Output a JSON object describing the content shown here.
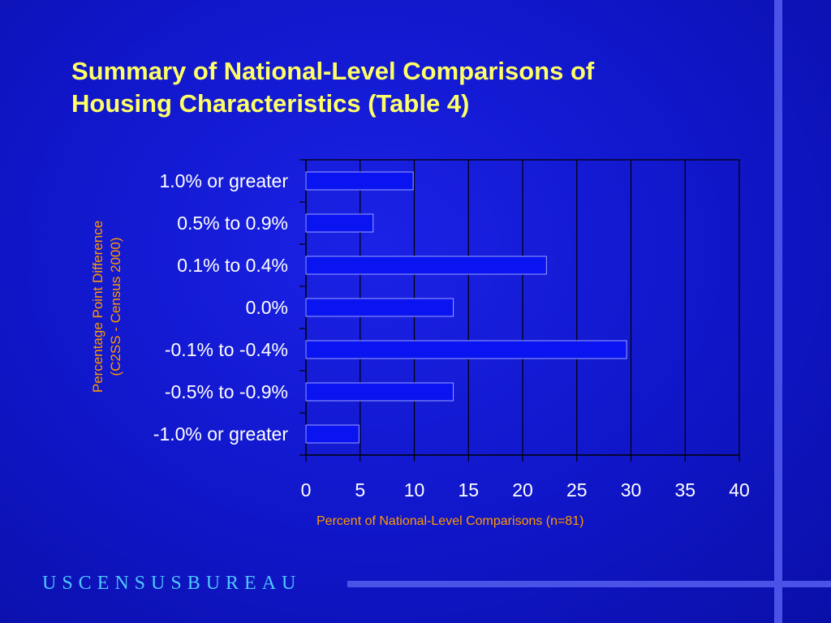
{
  "slide": {
    "title_line1": "Summary of National-Level Comparisons of",
    "title_line2": "Housing Characteristics (Table 4)",
    "brand": "USCENSUSBUREAU"
  },
  "colors": {
    "background": "#1016c8",
    "title": "#ffff66",
    "axis_labels": "#ff9900",
    "bar_fill": "#0a14f0",
    "bar_edge": "#9aa0ff",
    "brand": "#4fc7ff",
    "accent_lines": "#4a52e8"
  },
  "chart_data": {
    "type": "bar",
    "orientation": "horizontal",
    "categories": [
      "1.0% or greater",
      "0.5% to 0.9%",
      "0.1% to 0.4%",
      "0.0%",
      "-0.1% to -0.4%",
      "-0.5% to -0.9%",
      "-1.0% or greater"
    ],
    "values": [
      9.9,
      6.2,
      22.2,
      13.6,
      29.6,
      13.6,
      4.9
    ],
    "xlabel": "Percent of National-Level Comparisons (n=81)",
    "ylabel_line1": "Percentage Point Difference",
    "ylabel_line2": "(C2SS - Census 2000)",
    "xlim": [
      0,
      40
    ],
    "xticks": [
      "0",
      "5",
      "10",
      "15",
      "20",
      "25",
      "30",
      "35",
      "40"
    ],
    "grid": "vertical",
    "legend": "none"
  }
}
